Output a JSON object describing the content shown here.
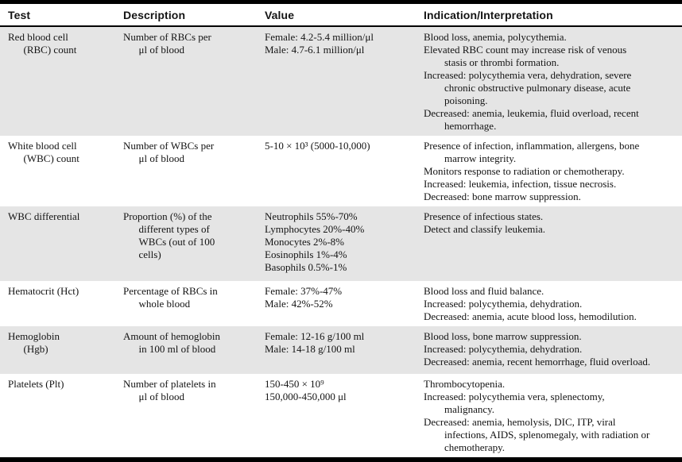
{
  "table": {
    "columns": [
      "Test",
      "Description",
      "Value",
      "Indication/Interpretation"
    ],
    "rows": [
      {
        "test": [
          "Red blood cell",
          "  (RBC) count"
        ],
        "description": [
          "Number of RBCs per",
          "  μl of blood"
        ],
        "value": [
          "Female: 4.2-5.4 million/μl",
          "Male: 4.7-6.1 million/μl"
        ],
        "indication": [
          "Blood loss, anemia, polycythemia.",
          "Elevated RBC count may increase risk of venous",
          "  stasis or thrombi formation.",
          "Increased: polycythemia vera, dehydration, severe",
          "  chronic obstructive pulmonary disease, acute",
          "  poisoning.",
          "Decreased: anemia, leukemia, fluid overload, recent",
          "  hemorrhage."
        ]
      },
      {
        "test": [
          "White blood cell",
          "  (WBC) count"
        ],
        "description": [
          "Number of WBCs per",
          "  μl of blood"
        ],
        "value": [
          "5-10 × 10³ (5000-10,000)"
        ],
        "indication": [
          "Presence of infection, inflammation, allergens, bone",
          "  marrow integrity.",
          "Monitors response to radiation or chemotherapy.",
          "Increased: leukemia, infection, tissue necrosis.",
          "Decreased: bone marrow suppression."
        ]
      },
      {
        "test": [
          "WBC differential"
        ],
        "description": [
          "Proportion (%) of the",
          "  different types of",
          "  WBCs (out of 100",
          "  cells)"
        ],
        "value": [
          "Neutrophils 55%-70%",
          "Lymphocytes 20%-40%",
          "Monocytes 2%-8%",
          "Eosinophils 1%-4%",
          "Basophils 0.5%-1%"
        ],
        "indication": [
          "Presence of infectious states.",
          "Detect and classify leukemia."
        ]
      },
      {
        "test": [
          "Hematocrit (Hct)"
        ],
        "description": [
          "Percentage of RBCs in",
          "  whole blood"
        ],
        "value": [
          "Female: 37%-47%",
          "Male: 42%-52%"
        ],
        "indication": [
          "Blood loss and fluid balance.",
          "Increased: polycythemia, dehydration.",
          "Decreased: anemia, acute blood loss, hemodilution."
        ]
      },
      {
        "test": [
          "Hemoglobin",
          "  (Hgb)"
        ],
        "description": [
          "Amount of hemoglobin",
          "  in 100 ml of blood"
        ],
        "value": [
          "Female: 12-16 g/100 ml",
          "Male: 14-18 g/100 ml"
        ],
        "indication": [
          "Blood loss, bone marrow suppression.",
          "Increased: polycythemia, dehydration.",
          "Decreased: anemia, recent hemorrhage, fluid overload."
        ]
      },
      {
        "test": [
          "Platelets (Plt)"
        ],
        "description": [
          "Number of platelets in",
          "  μl of blood"
        ],
        "value": [
          "150-450 × 10⁹",
          "150,000-450,000 μl"
        ],
        "indication": [
          "Thrombocytopenia.",
          "Increased: polycythemia vera, splenectomy,",
          "  malignancy.",
          "Decreased: anemia, hemolysis, DIC, ITP, viral",
          "  infections, AIDS, splenomegaly, with radiation or",
          "  chemotherapy."
        ]
      }
    ]
  },
  "colors": {
    "row_shade": "#e5e5e5",
    "border": "#000000",
    "text": "#141414"
  }
}
